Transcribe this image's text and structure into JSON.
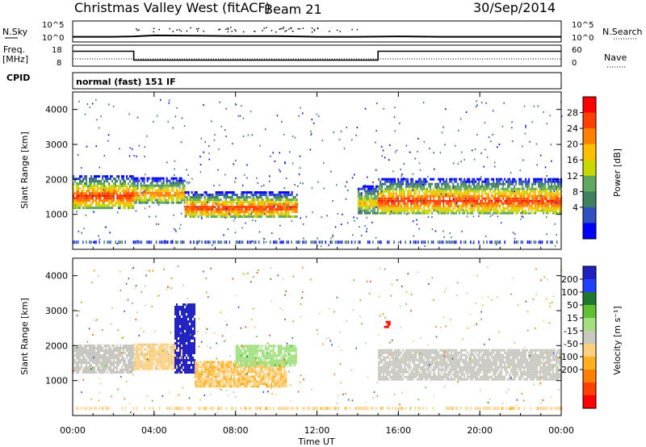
{
  "header": {
    "title": "Christmas Valley West (fitACF)",
    "beam": "Beam 21",
    "date": "30/Sep/2014"
  },
  "params_panel": {
    "nsky_label": "N.Sky",
    "nsearch_label": "N.Search",
    "nsky_ticks": [
      "10^5",
      "10^0"
    ],
    "nsky_right_ticks": [
      "10^5",
      "10^0"
    ],
    "freq_label_1": "Freq.",
    "freq_label_2": "[MHz]",
    "freq_ticks": [
      "18",
      "8"
    ],
    "nave_label": "Nave",
    "nave_ticks": [
      "60",
      "0"
    ],
    "cpid_label": "CPID",
    "cpid_value": "normal (fast) 151 IF"
  },
  "colorbars": {
    "power": {
      "label": "Power [dB]",
      "ticks": [
        "28",
        "24",
        "20",
        "16",
        "12",
        "8",
        "4"
      ],
      "colors": [
        "#ff0000",
        "#ff4000",
        "#ff8000",
        "#ffbf00",
        "#c8d800",
        "#60a860",
        "#408060",
        "#3050c0",
        "#0000ff"
      ]
    },
    "velocity": {
      "label": "Velocity [m s⁻¹]",
      "ticks": [
        "200",
        "100",
        "50",
        "15",
        "-15",
        "-50",
        "-100",
        "-200"
      ],
      "colors": [
        "#2020c0",
        "#2040ff",
        "#207830",
        "#60c030",
        "#a0e080",
        "#c8c8c0",
        "#ffd080",
        "#ffb020",
        "#ff8000",
        "#ff4000",
        "#ff0000"
      ]
    }
  },
  "chart_data": [
    {
      "type": "line",
      "title": "N.Sky / N.Search",
      "x": [
        "00:00",
        "02:00",
        "03:00",
        "04:00",
        "06:00",
        "08:00",
        "10:00",
        "12:00",
        "14:00",
        "16:00",
        "18:00",
        "20:00",
        "22:00",
        "24:00"
      ],
      "series": [
        {
          "name": "N.Sky",
          "values": [
            1.0,
            1.0,
            1.1,
            1.4,
            1.3,
            1.2,
            1.2,
            1.0,
            1.0,
            1.1,
            1.0,
            1.0,
            1.0,
            1.0
          ]
        }
      ],
      "ylim": [
        0,
        5
      ],
      "yscale": "log10 exponent"
    },
    {
      "type": "line",
      "title": "Freq / Nave",
      "series": [
        {
          "name": "Freq. [MHz]",
          "x": [
            "00:00",
            "03:00",
            "03:00",
            "15:00",
            "15:00",
            "24:00"
          ],
          "values": [
            15.5,
            15.5,
            10.5,
            10.5,
            15.5,
            15.5
          ]
        }
      ],
      "ylim": [
        8,
        18
      ]
    },
    {
      "type": "heatmap",
      "title": "Power [dB]",
      "xlabel": "Time UT",
      "ylabel": "Slant Range [km]",
      "xlim": [
        "00:00",
        "24:00"
      ],
      "ylim": [
        0,
        4500
      ],
      "x_ticks": [
        "00:00",
        "04:00",
        "08:00",
        "12:00",
        "16:00",
        "20:00",
        "00:00"
      ],
      "y_ticks": [
        1000,
        2000,
        3000,
        4000
      ],
      "color_scale": [
        0,
        32
      ],
      "regions": [
        {
          "t_start": 0.0,
          "t_end": 3.0,
          "r_low": 1150,
          "r_high": 2100,
          "peak_db": 28
        },
        {
          "t_start": 3.0,
          "t_end": 5.5,
          "r_low": 1300,
          "r_high": 2000,
          "peak_db": 24
        },
        {
          "t_start": 5.5,
          "t_end": 11.0,
          "r_low": 900,
          "r_high": 1600,
          "peak_db": 28
        },
        {
          "t_start": 14.0,
          "t_end": 15.0,
          "r_low": 1000,
          "r_high": 1800,
          "peak_db": 20
        },
        {
          "t_start": 15.0,
          "t_end": 24.0,
          "r_low": 1000,
          "r_high": 2000,
          "peak_db": 28
        }
      ]
    },
    {
      "type": "heatmap",
      "title": "Velocity [m s^-1]",
      "xlabel": "Time UT",
      "ylabel": "Slant Range [km]",
      "xlim": [
        "00:00",
        "24:00"
      ],
      "ylim": [
        0,
        4500
      ],
      "x_ticks": [
        "00:00",
        "04:00",
        "08:00",
        "12:00",
        "16:00",
        "20:00",
        "00:00"
      ],
      "y_ticks": [
        1000,
        2000,
        3000,
        4000
      ],
      "color_scale": [
        -200,
        200
      ],
      "regions": [
        {
          "t_start": 0.0,
          "t_end": 3.0,
          "r_low": 1200,
          "r_high": 2000,
          "velocity": 0
        },
        {
          "t_start": 3.0,
          "t_end": 5.5,
          "r_low": 1300,
          "r_high": 2000,
          "velocity": -30
        },
        {
          "t_start": 5.0,
          "t_end": 6.0,
          "r_low": 1200,
          "r_high": 3200,
          "velocity": 200
        },
        {
          "t_start": 6.0,
          "t_end": 10.5,
          "r_low": 800,
          "r_high": 1500,
          "velocity": -50
        },
        {
          "t_start": 8.0,
          "t_end": 11.0,
          "r_low": 1400,
          "r_high": 2000,
          "velocity": 40
        },
        {
          "t_start": 15.0,
          "t_end": 24.0,
          "r_low": 1000,
          "r_high": 1900,
          "velocity": 0
        },
        {
          "t_start": 15.3,
          "t_end": 15.6,
          "r_low": 2500,
          "r_high": 2700,
          "velocity": -200
        }
      ]
    }
  ],
  "x_axis": {
    "ticks": [
      "00:00",
      "04:00",
      "08:00",
      "12:00",
      "16:00",
      "20:00",
      "00:00"
    ],
    "label": "Time UT"
  },
  "y_axis": {
    "label": "Slant Range [km]",
    "ticks": [
      "1000",
      "2000",
      "3000",
      "4000"
    ]
  }
}
